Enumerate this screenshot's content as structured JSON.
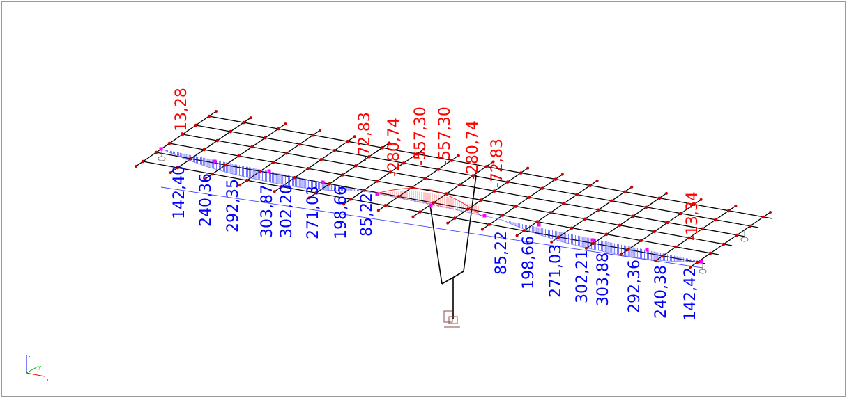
{
  "colors": {
    "positive": "#0000ff",
    "negative": "#ff0000",
    "grid": "#000000",
    "node": "#cc0000",
    "mid_node": "#ff00ff",
    "diagram_pos": "#2020ff",
    "diagram_neg": "#ff2020"
  },
  "diagram": {
    "labels_negative": [
      "-13,28",
      "-72,83",
      "-280,74",
      "-557,30",
      "-557,30",
      "-280,74",
      "-72,83",
      "-13,34"
    ],
    "labels_positive_left": [
      "142,40",
      "240,36",
      "292,35",
      "303,87",
      "302,20",
      "271,03",
      "198,66",
      "85,22"
    ],
    "labels_positive_right": [
      "85,22",
      "198,66",
      "271,03",
      "302,21",
      "303,88",
      "292,36",
      "240,38",
      "142,42"
    ]
  },
  "axes_triad": {
    "z": "z",
    "y": "y",
    "x": "x"
  }
}
